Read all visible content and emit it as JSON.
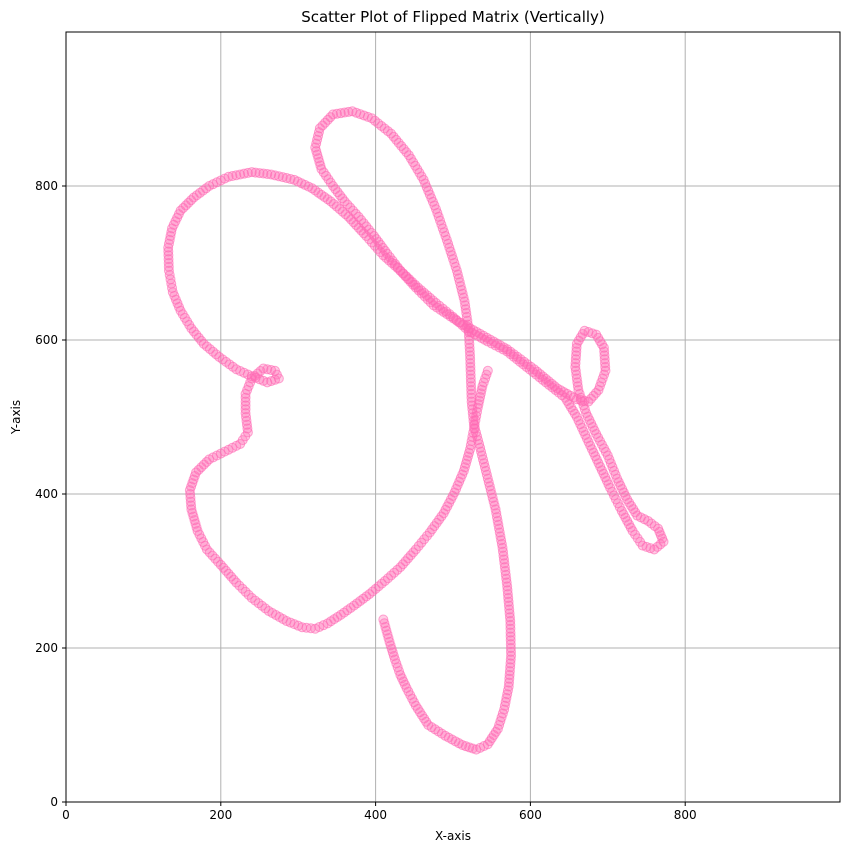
{
  "chart_data": {
    "type": "scatter",
    "title": "Scatter Plot of Flipped Matrix (Vertically)",
    "xlabel": "X-axis",
    "ylabel": "Y-axis",
    "xlim": [
      0,
      1000
    ],
    "ylim": [
      0,
      1000
    ],
    "xticks": [
      0,
      200,
      400,
      600,
      800
    ],
    "yticks": [
      0,
      200,
      400,
      600,
      800
    ],
    "grid": true,
    "marker_color": "#ff69b4",
    "marker_opacity": 0.6,
    "points": [
      [
        410,
        237
      ],
      [
        418,
        208
      ],
      [
        425,
        185
      ],
      [
        432,
        165
      ],
      [
        440,
        148
      ],
      [
        452,
        125
      ],
      [
        468,
        100
      ],
      [
        490,
        86
      ],
      [
        512,
        74
      ],
      [
        530,
        68
      ],
      [
        545,
        75
      ],
      [
        558,
        95
      ],
      [
        566,
        120
      ],
      [
        572,
        150
      ],
      [
        575,
        190
      ],
      [
        574,
        235
      ],
      [
        570,
        280
      ],
      [
        564,
        330
      ],
      [
        555,
        380
      ],
      [
        545,
        420
      ],
      [
        535,
        460
      ],
      [
        527,
        490
      ],
      [
        524,
        520
      ],
      [
        523,
        550
      ],
      [
        522,
        580
      ],
      [
        520,
        615
      ],
      [
        515,
        650
      ],
      [
        505,
        690
      ],
      [
        492,
        730
      ],
      [
        478,
        770
      ],
      [
        462,
        808
      ],
      [
        443,
        840
      ],
      [
        420,
        868
      ],
      [
        395,
        888
      ],
      [
        370,
        897
      ],
      [
        345,
        893
      ],
      [
        328,
        875
      ],
      [
        322,
        850
      ],
      [
        330,
        822
      ],
      [
        345,
        800
      ],
      [
        360,
        780
      ],
      [
        378,
        760
      ],
      [
        398,
        735
      ],
      [
        415,
        712
      ],
      [
        432,
        690
      ],
      [
        452,
        668
      ],
      [
        475,
        645
      ],
      [
        505,
        625
      ],
      [
        535,
        608
      ],
      [
        570,
        588
      ],
      [
        605,
        562
      ],
      [
        635,
        537
      ],
      [
        660,
        523
      ],
      [
        675,
        520
      ],
      [
        688,
        535
      ],
      [
        697,
        560
      ],
      [
        695,
        590
      ],
      [
        685,
        607
      ],
      [
        670,
        612
      ],
      [
        660,
        595
      ],
      [
        658,
        565
      ],
      [
        662,
        535
      ],
      [
        672,
        505
      ],
      [
        685,
        478
      ],
      [
        700,
        450
      ],
      [
        712,
        420
      ],
      [
        725,
        393
      ],
      [
        738,
        372
      ],
      [
        752,
        365
      ],
      [
        765,
        355
      ],
      [
        772,
        338
      ],
      [
        760,
        328
      ],
      [
        745,
        333
      ],
      [
        732,
        352
      ],
      [
        718,
        378
      ],
      [
        703,
        408
      ],
      [
        688,
        440
      ],
      [
        673,
        472
      ],
      [
        660,
        500
      ],
      [
        645,
        525
      ],
      [
        620,
        545
      ],
      [
        595,
        565
      ],
      [
        570,
        585
      ],
      [
        545,
        598
      ],
      [
        520,
        612
      ],
      [
        500,
        630
      ],
      [
        478,
        648
      ],
      [
        455,
        668
      ],
      [
        432,
        690
      ],
      [
        410,
        710
      ],
      [
        388,
        735
      ],
      [
        365,
        760
      ],
      [
        342,
        780
      ],
      [
        318,
        797
      ],
      [
        295,
        808
      ],
      [
        265,
        815
      ],
      [
        240,
        818
      ],
      [
        210,
        812
      ],
      [
        185,
        800
      ],
      [
        165,
        785
      ],
      [
        148,
        768
      ],
      [
        137,
        745
      ],
      [
        132,
        720
      ],
      [
        133,
        690
      ],
      [
        138,
        662
      ],
      [
        148,
        638
      ],
      [
        162,
        615
      ],
      [
        178,
        595
      ],
      [
        198,
        578
      ],
      [
        220,
        562
      ],
      [
        240,
        553
      ],
      [
        260,
        545
      ],
      [
        275,
        550
      ],
      [
        270,
        560
      ],
      [
        255,
        563
      ],
      [
        240,
        550
      ],
      [
        232,
        530
      ],
      [
        232,
        505
      ],
      [
        235,
        480
      ],
      [
        225,
        465
      ],
      [
        205,
        455
      ],
      [
        185,
        445
      ],
      [
        168,
        428
      ],
      [
        160,
        405
      ],
      [
        162,
        380
      ],
      [
        170,
        352
      ],
      [
        182,
        328
      ],
      [
        200,
        308
      ],
      [
        220,
        285
      ],
      [
        240,
        265
      ],
      [
        262,
        248
      ],
      [
        285,
        235
      ],
      [
        305,
        227
      ],
      [
        322,
        225
      ],
      [
        338,
        232
      ],
      [
        355,
        243
      ],
      [
        372,
        255
      ],
      [
        392,
        270
      ],
      [
        412,
        287
      ],
      [
        432,
        305
      ],
      [
        452,
        328
      ],
      [
        470,
        350
      ],
      [
        488,
        375
      ],
      [
        502,
        402
      ],
      [
        514,
        430
      ],
      [
        522,
        458
      ],
      [
        527,
        485
      ],
      [
        532,
        512
      ],
      [
        538,
        540
      ],
      [
        545,
        560
      ]
    ]
  }
}
